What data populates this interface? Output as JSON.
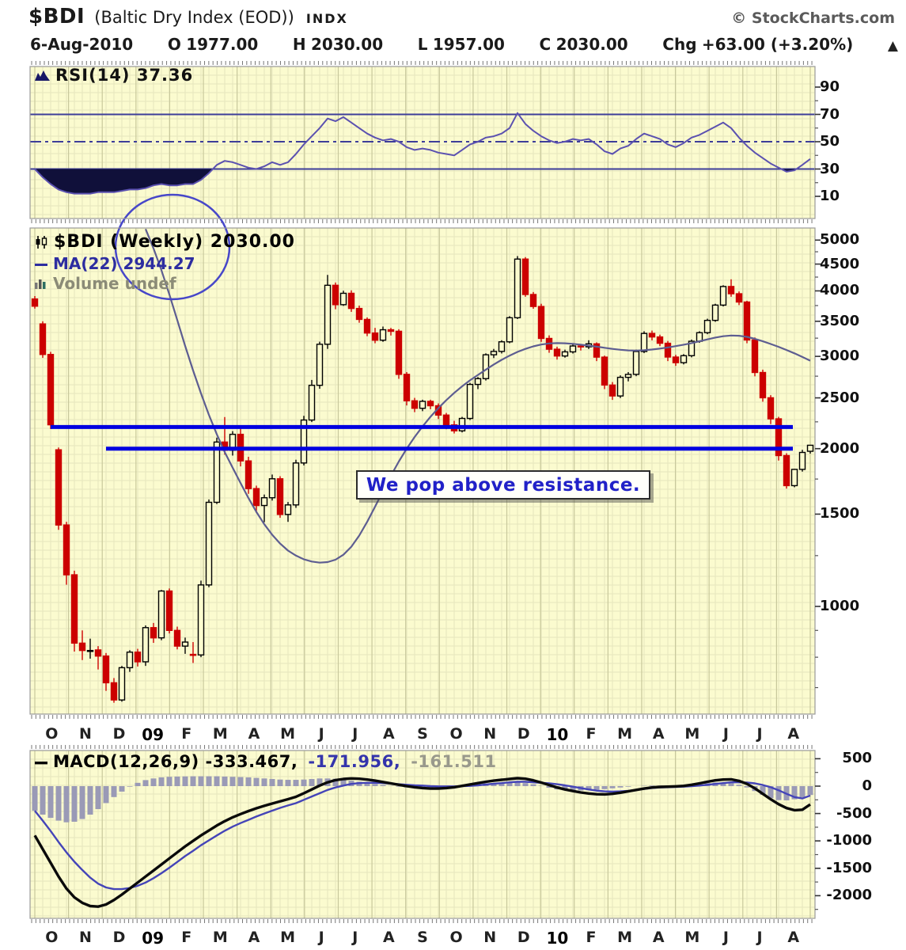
{
  "header": {
    "symbol": "$BDI",
    "name": "(Baltic Dry Index (EOD))",
    "exchange": "INDX",
    "copyright": "© StockCharts.com",
    "date": "6-Aug-2010",
    "o_label": "O",
    "o": "1977.00",
    "h_label": "H",
    "h": "2030.00",
    "l_label": "L",
    "l": "1957.00",
    "c_label": "C",
    "c": "2030.00",
    "chg_label": "Chg",
    "chg": "+63.00 (+3.20%)",
    "up_arrow": "▲"
  },
  "legends": {
    "rsi": "RSI(14) 37.36",
    "price": "$BDI (Weekly) 2030.00",
    "ma": "MA(22) 2944.27",
    "volume": "Volume undef",
    "macd": "MACD(12,26,9) -333.467,",
    "macd_signal": "-171.956,",
    "macd_hist": "-161.511"
  },
  "annotation": "We pop above resistance.",
  "x_axis": {
    "labels": [
      "O",
      "N",
      "D",
      "09",
      "F",
      "M",
      "A",
      "M",
      "J",
      "J",
      "A",
      "S",
      "O",
      "N",
      "D",
      "10",
      "F",
      "M",
      "A",
      "M",
      "J",
      "J",
      "A"
    ],
    "bold_labels": [
      "09",
      "10"
    ]
  },
  "colors": {
    "panel_bg": "#fbfbcf",
    "grid": "#e6e6bc",
    "month_grid": "#c8c89c",
    "border": "#999999",
    "candle_down": "#cc0000",
    "candle_up": "#000000",
    "ma_line": "#5d5d91",
    "resistance": "#0000e0",
    "rsi_line": "#5b51b0",
    "rsi_level": "#3d3d99",
    "rsi_fill": "#10103a",
    "macd_line": "#0a0a0a",
    "signal_line": "#4444b8",
    "hist_bar": "#9a9ab6",
    "ellipse": "#4747c9",
    "tick": "#555555"
  },
  "chart_data": [
    {
      "type": "line",
      "panel": "rsi",
      "title": "RSI(14)",
      "last": 37.36,
      "ylim": [
        0,
        100
      ],
      "yticks": [
        90,
        70,
        50,
        30,
        10
      ],
      "minor_yticks": [
        80,
        60,
        40,
        20
      ],
      "levels": {
        "overbought": 70,
        "mid": 50,
        "oversold": 30
      },
      "fill_below": 30,
      "values": [
        30,
        24,
        19,
        15,
        13,
        12,
        12,
        12,
        13,
        13,
        13,
        14,
        15,
        15,
        16,
        18,
        19,
        18,
        18,
        19,
        19,
        22,
        27,
        33,
        36,
        35,
        33,
        31,
        30,
        32,
        35,
        33,
        35,
        41,
        48,
        54,
        60,
        67,
        65,
        68,
        64,
        60,
        56,
        53,
        51,
        52,
        50,
        46,
        44,
        45,
        44,
        42,
        41,
        40,
        44,
        48,
        50,
        53,
        54,
        56,
        60,
        71,
        63,
        58,
        54,
        51,
        49,
        50,
        52,
        51,
        52,
        48,
        43,
        41,
        45,
        47,
        52,
        56,
        54,
        52,
        48,
        46,
        49,
        53,
        55,
        58,
        61,
        64,
        60,
        53,
        47,
        42,
        38,
        34,
        31,
        28,
        29,
        33,
        37.36
      ]
    },
    {
      "type": "candlestick",
      "panel": "price",
      "title": "$BDI (Weekly)",
      "last": 2030.0,
      "log_scale": true,
      "yticks": [
        5000,
        4500,
        4000,
        3500,
        3000,
        2500,
        2000,
        1500,
        1000
      ],
      "minor_yticks": [
        4750,
        4250,
        3750,
        3250,
        2750,
        2250,
        1750,
        1250,
        900,
        800,
        700,
        600
      ],
      "resistance": [
        2200,
        2000
      ],
      "candles": [
        [
          3860,
          3910,
          3700,
          3740
        ],
        [
          3460,
          3500,
          2980,
          3025
        ],
        [
          3025,
          3060,
          2180,
          2221
        ],
        [
          1990,
          2010,
          1400,
          1430
        ],
        [
          1430,
          1450,
          1100,
          1149
        ],
        [
          1149,
          1170,
          820,
          851
        ],
        [
          851,
          900,
          790,
          824
        ],
        [
          824,
          868,
          795,
          824
        ],
        [
          826,
          840,
          758,
          804
        ],
        [
          804,
          815,
          690,
          715
        ],
        [
          715,
          730,
          655,
          663
        ],
        [
          663,
          770,
          658,
          764
        ],
        [
          764,
          825,
          750,
          818
        ],
        [
          818,
          830,
          768,
          784
        ],
        [
          784,
          920,
          770,
          911
        ],
        [
          911,
          930,
          852,
          871
        ],
        [
          871,
          1075,
          862,
          1070
        ],
        [
          1070,
          1082,
          888,
          900
        ],
        [
          900,
          915,
          828,
          840
        ],
        [
          840,
          872,
          812,
          855
        ],
        [
          810,
          855,
          780,
          808
        ],
        [
          808,
          1120,
          800,
          1099
        ],
        [
          1099,
          1600,
          1088,
          1580
        ],
        [
          1580,
          2099,
          1568,
          2059
        ],
        [
          2059,
          2298,
          1948,
          1986
        ],
        [
          1986,
          2160,
          1940,
          2130
        ],
        [
          2130,
          2190,
          1850,
          1895
        ],
        [
          1895,
          1930,
          1640,
          1678
        ],
        [
          1678,
          1700,
          1508,
          1558
        ],
        [
          1558,
          1635,
          1448,
          1612
        ],
        [
          1612,
          1785,
          1592,
          1752
        ],
        [
          1752,
          1772,
          1476,
          1498
        ],
        [
          1498,
          1582,
          1450,
          1562
        ],
        [
          1562,
          1905,
          1542,
          1878
        ],
        [
          1878,
          2310,
          1858,
          2268
        ],
        [
          2268,
          2705,
          2248,
          2642
        ],
        [
          2642,
          3200,
          2602,
          3164
        ],
        [
          3164,
          4291,
          3100,
          4100
        ],
        [
          4100,
          4150,
          3690,
          3765
        ],
        [
          3765,
          4003,
          3745,
          3958
        ],
        [
          3958,
          4010,
          3648,
          3703
        ],
        [
          3703,
          3750,
          3478,
          3529
        ],
        [
          3529,
          3560,
          3278,
          3324
        ],
        [
          3324,
          3400,
          3178,
          3221
        ],
        [
          3221,
          3420,
          3198,
          3372
        ],
        [
          3372,
          3400,
          3288,
          3350
        ],
        [
          3350,
          3380,
          2718,
          2772
        ],
        [
          2772,
          2800,
          2418,
          2468
        ],
        [
          2468,
          2500,
          2348,
          2388
        ],
        [
          2388,
          2480,
          2358,
          2462
        ],
        [
          2462,
          2480,
          2378,
          2415
        ],
        [
          2415,
          2440,
          2278,
          2318
        ],
        [
          2318,
          2340,
          2178,
          2220
        ],
        [
          2220,
          2260,
          2138,
          2163
        ],
        [
          2163,
          2300,
          2148,
          2284
        ],
        [
          2284,
          2670,
          2268,
          2652
        ],
        [
          2652,
          2740,
          2598,
          2720
        ],
        [
          2720,
          3040,
          2698,
          3021
        ],
        [
          3021,
          3100,
          2978,
          3066
        ],
        [
          3066,
          3220,
          3038,
          3198
        ],
        [
          3198,
          3580,
          3178,
          3555
        ],
        [
          3555,
          4661,
          3535,
          4600
        ],
        [
          4600,
          4640,
          3898,
          3937
        ],
        [
          3937,
          3980,
          3698,
          3735
        ],
        [
          3735,
          3780,
          3198,
          3246
        ],
        [
          3246,
          3290,
          3048,
          3096
        ],
        [
          3096,
          3130,
          2958,
          3005
        ],
        [
          3005,
          3090,
          2983,
          3060
        ],
        [
          3060,
          3180,
          3038,
          3140
        ],
        [
          3140,
          3162,
          3078,
          3128
        ],
        [
          3128,
          3220,
          3098,
          3170
        ],
        [
          3170,
          3190,
          2938,
          2990
        ],
        [
          2990,
          3010,
          2598,
          2645
        ],
        [
          2645,
          2680,
          2478,
          2521
        ],
        [
          2521,
          2760,
          2498,
          2736
        ],
        [
          2736,
          2800,
          2688,
          2772
        ],
        [
          2772,
          3090,
          2750,
          3065
        ],
        [
          3065,
          3350,
          3043,
          3318
        ],
        [
          3318,
          3360,
          3218,
          3267
        ],
        [
          3267,
          3300,
          3138,
          3178
        ],
        [
          3178,
          3210,
          2938,
          2991
        ],
        [
          2991,
          3020,
          2878,
          2918
        ],
        [
          2918,
          3030,
          2896,
          3009
        ],
        [
          3009,
          3230,
          2987,
          3206
        ],
        [
          3206,
          3350,
          3184,
          3329
        ],
        [
          3329,
          3540,
          3307,
          3514
        ],
        [
          3514,
          3780,
          3492,
          3758
        ],
        [
          3758,
          4100,
          3736,
          4078
        ],
        [
          4078,
          4209,
          3898,
          3950
        ],
        [
          3950,
          3990,
          3758,
          3809
        ],
        [
          3809,
          3830,
          3178,
          3224
        ],
        [
          3224,
          3260,
          2748,
          2795
        ],
        [
          2795,
          2830,
          2458,
          2501
        ],
        [
          2501,
          2530,
          2228,
          2280
        ],
        [
          2280,
          2300,
          1898,
          1940
        ],
        [
          1940,
          1960,
          1678,
          1700
        ],
        [
          1700,
          1830,
          1688,
          1826
        ],
        [
          1826,
          1990,
          1808,
          1967
        ],
        [
          1977,
          2030,
          1957,
          2030
        ]
      ],
      "ma22": {
        "start": 14,
        "values": [
          5250,
          4820,
          4380,
          3940,
          3520,
          3140,
          2820,
          2550,
          2320,
          2130,
          1970,
          1840,
          1720,
          1610,
          1515,
          1435,
          1370,
          1318,
          1278,
          1250,
          1230,
          1218,
          1212,
          1215,
          1228,
          1255,
          1300,
          1365,
          1450,
          1550,
          1660,
          1775,
          1890,
          2000,
          2105,
          2205,
          2300,
          2390,
          2475,
          2555,
          2630,
          2700,
          2765,
          2830,
          2895,
          2955,
          3010,
          3060,
          3100,
          3135,
          3160,
          3175,
          3180,
          3178,
          3170,
          3158,
          3145,
          3130,
          3115,
          3100,
          3088,
          3080,
          3078,
          3082,
          3092,
          3105,
          3120,
          3138,
          3158,
          3180,
          3205,
          3232,
          3258,
          3278,
          3288,
          3285,
          3268,
          3240,
          3205,
          3168,
          3128,
          3085,
          3040,
          2992,
          2944
        ]
      }
    },
    {
      "type": "macd",
      "panel": "macd",
      "params": "12,26,9",
      "macd_last": -333.467,
      "signal_last": -171.956,
      "hist_last": -161.511,
      "yticks": [
        500,
        0,
        -500,
        -1000,
        -1500,
        -2000
      ],
      "minor_yticks": [
        250,
        -250,
        -750,
        -1250,
        -1750,
        -2250
      ],
      "macd": [
        -900,
        -1150,
        -1400,
        -1650,
        -1870,
        -2030,
        -2130,
        -2190,
        -2200,
        -2160,
        -2080,
        -1980,
        -1870,
        -1760,
        -1650,
        -1540,
        -1430,
        -1320,
        -1210,
        -1100,
        -1000,
        -900,
        -810,
        -720,
        -640,
        -570,
        -510,
        -455,
        -405,
        -360,
        -318,
        -278,
        -238,
        -195,
        -130,
        -60,
        10,
        70,
        110,
        130,
        140,
        135,
        120,
        100,
        75,
        50,
        25,
        0,
        -20,
        -35,
        -45,
        -45,
        -35,
        -20,
        5,
        30,
        55,
        80,
        100,
        115,
        130,
        145,
        135,
        105,
        65,
        20,
        -25,
        -60,
        -90,
        -115,
        -135,
        -148,
        -150,
        -140,
        -120,
        -95,
        -70,
        -45,
        -25,
        -15,
        -10,
        -5,
        5,
        25,
        50,
        80,
        105,
        120,
        125,
        95,
        40,
        -40,
        -140,
        -240,
        -330,
        -400,
        -440,
        -430,
        -333.467
      ],
      "hist": [
        -450,
        -520,
        -580,
        -630,
        -660,
        -650,
        -600,
        -520,
        -420,
        -310,
        -200,
        -100,
        -10,
        60,
        110,
        140,
        160,
        170,
        175,
        178,
        180,
        180,
        180,
        180,
        175,
        170,
        165,
        160,
        150,
        140,
        130,
        120,
        115,
        115,
        120,
        130,
        140,
        140,
        135,
        120,
        100,
        80,
        60,
        40,
        20,
        5,
        -10,
        -25,
        -35,
        -45,
        -45,
        -40,
        -30,
        -15,
        5,
        25,
        40,
        50,
        55,
        60,
        60,
        65,
        55,
        35,
        5,
        -30,
        -60,
        -75,
        -80,
        -80,
        -75,
        -65,
        -55,
        -40,
        -25,
        -10,
        0,
        5,
        10,
        10,
        10,
        10,
        15,
        25,
        40,
        55,
        65,
        65,
        55,
        25,
        -25,
        -90,
        -160,
        -220,
        -255,
        -260,
        -240,
        -205,
        -161.511
      ]
    }
  ]
}
